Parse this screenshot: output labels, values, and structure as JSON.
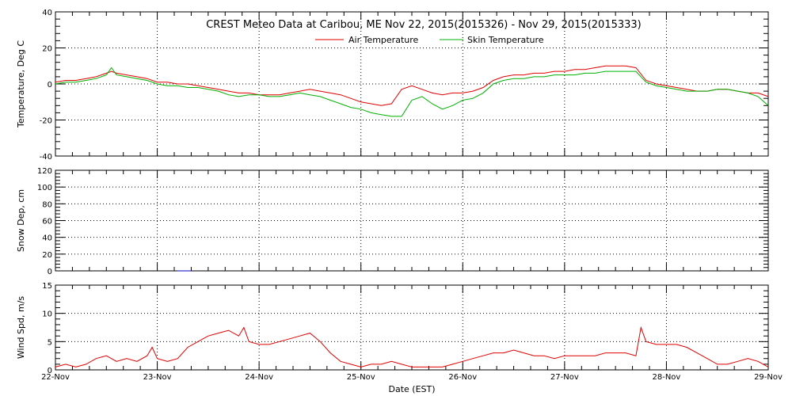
{
  "chart_data": [
    {
      "type": "line",
      "title": "CREST Meteo Data at Caribou, ME   Nov 22, 2015(2015326) - Nov 29, 2015(2015333)",
      "ylabel": "Temperature, Deg C",
      "ylim": [
        -40,
        40
      ],
      "yticks": [
        -40,
        -20,
        0,
        20,
        40
      ],
      "xlim": [
        0,
        7
      ],
      "grid": true,
      "legend_position": "top-center",
      "series": [
        {
          "name": "Air Temperature",
          "color": "#e00000",
          "x": [
            0,
            0.1,
            0.2,
            0.3,
            0.4,
            0.5,
            0.55,
            0.6,
            0.7,
            0.8,
            0.9,
            1.0,
            1.1,
            1.2,
            1.3,
            1.4,
            1.5,
            1.6,
            1.7,
            1.8,
            1.9,
            2.0,
            2.1,
            2.2,
            2.3,
            2.4,
            2.5,
            2.6,
            2.7,
            2.8,
            2.9,
            3.0,
            3.1,
            3.2,
            3.3,
            3.4,
            3.5,
            3.6,
            3.7,
            3.8,
            3.9,
            4.0,
            4.1,
            4.2,
            4.3,
            4.4,
            4.5,
            4.6,
            4.7,
            4.8,
            4.9,
            5.0,
            5.1,
            5.2,
            5.3,
            5.4,
            5.5,
            5.6,
            5.7,
            5.8,
            5.85,
            5.9,
            6.0,
            6.1,
            6.2,
            6.3,
            6.4,
            6.5,
            6.6,
            6.7,
            6.8,
            6.9,
            7.0
          ],
          "y": [
            1,
            2,
            2,
            3,
            4,
            6,
            7,
            6,
            5,
            4,
            3,
            1,
            1,
            0,
            0,
            -1,
            -2,
            -3,
            -4,
            -5,
            -5,
            -6,
            -6,
            -6,
            -5,
            -4,
            -3,
            -4,
            -5,
            -6,
            -8,
            -10,
            -11,
            -12,
            -11,
            -3,
            -1,
            -3,
            -5,
            -6,
            -5,
            -5,
            -4,
            -2,
            2,
            4,
            5,
            5,
            6,
            6,
            7,
            7,
            8,
            8,
            9,
            10,
            10,
            10,
            9,
            2,
            1,
            0,
            -1,
            -2,
            -3,
            -4,
            -4,
            -3,
            -3,
            -4,
            -5,
            -5,
            -7
          ]
        },
        {
          "name": "Skin Temperature",
          "color": "#00b000",
          "x": [
            0,
            0.1,
            0.2,
            0.3,
            0.4,
            0.5,
            0.55,
            0.6,
            0.7,
            0.8,
            0.9,
            1.0,
            1.1,
            1.2,
            1.3,
            1.4,
            1.5,
            1.6,
            1.7,
            1.8,
            1.9,
            2.0,
            2.1,
            2.2,
            2.3,
            2.4,
            2.5,
            2.6,
            2.7,
            2.8,
            2.9,
            3.0,
            3.1,
            3.2,
            3.3,
            3.4,
            3.5,
            3.6,
            3.7,
            3.8,
            3.9,
            4.0,
            4.1,
            4.2,
            4.3,
            4.4,
            4.5,
            4.6,
            4.7,
            4.8,
            4.9,
            5.0,
            5.1,
            5.2,
            5.3,
            5.4,
            5.5,
            5.6,
            5.7,
            5.8,
            5.85,
            5.9,
            6.0,
            6.1,
            6.2,
            6.3,
            6.4,
            6.5,
            6.6,
            6.7,
            6.8,
            6.9,
            7.0
          ],
          "y": [
            0,
            1,
            1,
            2,
            3,
            5,
            9,
            5,
            4,
            3,
            2,
            0,
            -1,
            -1,
            -2,
            -2,
            -3,
            -4,
            -6,
            -7,
            -6,
            -6,
            -7,
            -7,
            -6,
            -5,
            -6,
            -7,
            -9,
            -11,
            -13,
            -14,
            -16,
            -17,
            -18,
            -18,
            -9,
            -7,
            -11,
            -14,
            -12,
            -9,
            -8,
            -5,
            0,
            2,
            3,
            3,
            4,
            4,
            5,
            5,
            5,
            6,
            6,
            7,
            7,
            7,
            7,
            1,
            0,
            -1,
            -2,
            -3,
            -4,
            -4,
            -4,
            -3,
            -3,
            -4,
            -5,
            -7,
            -12
          ]
        }
      ]
    },
    {
      "type": "line",
      "ylabel": "Snow Dep, cm",
      "ylim": [
        0,
        120
      ],
      "yticks": [
        0,
        20,
        40,
        60,
        80,
        100,
        120
      ],
      "xlim": [
        0,
        7
      ],
      "grid": true,
      "series": [
        {
          "color": "#0000cc",
          "x": [
            1.2,
            1.33
          ],
          "y": [
            0,
            0
          ]
        }
      ]
    },
    {
      "type": "line",
      "ylabel": "Wind Spd, m/s",
      "ylim": [
        0,
        15
      ],
      "yticks": [
        0,
        5,
        10,
        15
      ],
      "xlim": [
        0,
        7
      ],
      "xlabel": "Date (EST)",
      "xtick_labels": [
        "22-Nov",
        "23-Nov",
        "24-Nov",
        "25-Nov",
        "26-Nov",
        "27-Nov",
        "28-Nov",
        "29-Nov"
      ],
      "grid": true,
      "series": [
        {
          "color": "#e00000",
          "x": [
            0,
            0.1,
            0.2,
            0.3,
            0.4,
            0.5,
            0.6,
            0.7,
            0.8,
            0.9,
            0.95,
            1.0,
            1.1,
            1.2,
            1.3,
            1.4,
            1.5,
            1.6,
            1.7,
            1.8,
            1.85,
            1.9,
            2.0,
            2.1,
            2.2,
            2.3,
            2.4,
            2.5,
            2.6,
            2.7,
            2.8,
            2.9,
            3.0,
            3.1,
            3.2,
            3.3,
            3.4,
            3.5,
            3.6,
            3.7,
            3.8,
            3.9,
            4.0,
            4.1,
            4.2,
            4.3,
            4.4,
            4.5,
            4.6,
            4.7,
            4.8,
            4.9,
            5.0,
            5.1,
            5.2,
            5.3,
            5.4,
            5.5,
            5.6,
            5.7,
            5.75,
            5.8,
            5.9,
            6.0,
            6.1,
            6.2,
            6.3,
            6.4,
            6.5,
            6.6,
            6.7,
            6.8,
            6.9,
            7.0
          ],
          "y": [
            0.5,
            1,
            0.5,
            1,
            2,
            2.5,
            1.5,
            2,
            1.5,
            2.5,
            4,
            2,
            1.5,
            2,
            4,
            5,
            6,
            6.5,
            7,
            6,
            7.5,
            5,
            4.5,
            4.5,
            5,
            5.5,
            6,
            6.5,
            5,
            3,
            1.5,
            1,
            0.5,
            1,
            1,
            1.5,
            1,
            0.5,
            0.5,
            0.5,
            0.5,
            1,
            1.5,
            2,
            2.5,
            3,
            3,
            3.5,
            3,
            2.5,
            2.5,
            2,
            2.5,
            2.5,
            2.5,
            2.5,
            3,
            3,
            3,
            2.5,
            7.5,
            5,
            4.5,
            4.5,
            4.5,
            4,
            3,
            2,
            1,
            1,
            1.5,
            2,
            1.5,
            0.5
          ]
        }
      ]
    }
  ]
}
